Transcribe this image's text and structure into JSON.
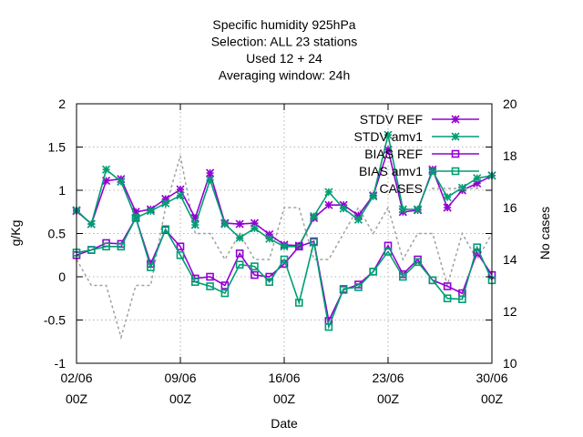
{
  "chart_data": {
    "type": "line",
    "title_lines": [
      "Specific humidity 925hPa",
      "Selection: ALL      23 stations",
      "Used  12  + 24",
      "Averaging window: 24h"
    ],
    "xlabel": "Date",
    "ylabel": "g/Kg",
    "y2label": "No cases",
    "xlim": [
      0,
      28
    ],
    "ylim": [
      -1,
      2
    ],
    "y2lim": [
      10,
      20
    ],
    "x_ticks": [
      {
        "x": 0,
        "line1": "02/06",
        "line2": "00Z"
      },
      {
        "x": 7,
        "line1": "09/06",
        "line2": "00Z"
      },
      {
        "x": 14,
        "line1": "16/06",
        "line2": "00Z"
      },
      {
        "x": 21,
        "line1": "23/06",
        "line2": "00Z"
      },
      {
        "x": 28,
        "line1": "30/06",
        "line2": "00Z"
      }
    ],
    "y_ticks": [
      {
        "v": -1,
        "label": "-1"
      },
      {
        "v": -0.5,
        "label": "-0.5"
      },
      {
        "v": 0,
        "label": "0"
      },
      {
        "v": 0.5,
        "label": "0.5"
      },
      {
        "v": 1,
        "label": "1"
      },
      {
        "v": 1.5,
        "label": "1.5"
      },
      {
        "v": 2,
        "label": "2"
      }
    ],
    "y2_ticks": [
      {
        "v": 10,
        "label": "10"
      },
      {
        "v": 12,
        "label": "12"
      },
      {
        "v": 14,
        "label": "14"
      },
      {
        "v": 16,
        "label": "16"
      },
      {
        "v": 18,
        "label": "18"
      },
      {
        "v": 20,
        "label": "20"
      }
    ],
    "grid": true,
    "legend_position": "top-right",
    "x": [
      0,
      1,
      2,
      3,
      4,
      5,
      6,
      7,
      8,
      9,
      10,
      11,
      12,
      13,
      14,
      15,
      16,
      17,
      18,
      19,
      20,
      21,
      22,
      23,
      24,
      25,
      26,
      27,
      28
    ],
    "series": [
      {
        "name": "STDV REF",
        "color": "#9400d3",
        "marker": "star",
        "axis": "y1",
        "values": [
          0.76,
          0.61,
          1.11,
          1.13,
          0.75,
          0.78,
          0.9,
          1.01,
          0.68,
          1.2,
          0.62,
          0.61,
          0.62,
          0.49,
          0.37,
          0.36,
          0.68,
          0.83,
          0.83,
          0.71,
          0.94,
          1.47,
          0.75,
          0.77,
          1.24,
          0.8,
          1.0,
          1.08,
          1.17
        ]
      },
      {
        "name": "STDV amv1",
        "color": "#009e73",
        "marker": "star",
        "axis": "y1",
        "values": [
          0.77,
          0.61,
          1.24,
          1.1,
          0.68,
          0.76,
          0.85,
          0.94,
          0.6,
          1.12,
          0.61,
          0.45,
          0.56,
          0.44,
          0.35,
          0.35,
          0.7,
          0.98,
          0.79,
          0.66,
          0.93,
          1.64,
          0.78,
          0.78,
          1.22,
          0.92,
          1.03,
          1.14,
          1.17
        ]
      },
      {
        "name": "BIAS REF",
        "color": "#9400d3",
        "marker": "square",
        "axis": "y1",
        "values": [
          0.25,
          0.31,
          0.39,
          0.38,
          0.68,
          0.15,
          0.54,
          0.35,
          -0.02,
          0.0,
          -0.1,
          0.27,
          0.02,
          0.0,
          0.15,
          0.35,
          0.41,
          -0.51,
          -0.15,
          -0.09,
          0.06,
          0.36,
          0.03,
          0.2,
          -0.04,
          -0.11,
          -0.19,
          0.28,
          0.02
        ]
      },
      {
        "name": "BIAS amv1",
        "color": "#009e73",
        "marker": "square",
        "axis": "y1",
        "values": [
          0.28,
          0.31,
          0.35,
          0.35,
          0.68,
          0.11,
          0.55,
          0.25,
          -0.06,
          -0.11,
          -0.19,
          0.14,
          0.12,
          -0.06,
          0.2,
          -0.3,
          0.4,
          -0.58,
          -0.14,
          -0.12,
          0.06,
          0.29,
          0.0,
          0.17,
          -0.04,
          -0.25,
          -0.26,
          0.34,
          -0.04
        ]
      },
      {
        "name": "CASES",
        "color": "#a0a0a0",
        "marker": "none",
        "dashed": true,
        "axis": "y2",
        "values": [
          14.0,
          13.0,
          13.0,
          11.0,
          13.0,
          13.0,
          16.0,
          18.0,
          15.0,
          15.0,
          14.0,
          15.0,
          14.0,
          14.0,
          16.0,
          16.0,
          14.0,
          14.0,
          15.0,
          16.0,
          15.0,
          16.0,
          14.0,
          15.0,
          15.0,
          13.0,
          15.0,
          14.0,
          15.0
        ]
      }
    ]
  }
}
